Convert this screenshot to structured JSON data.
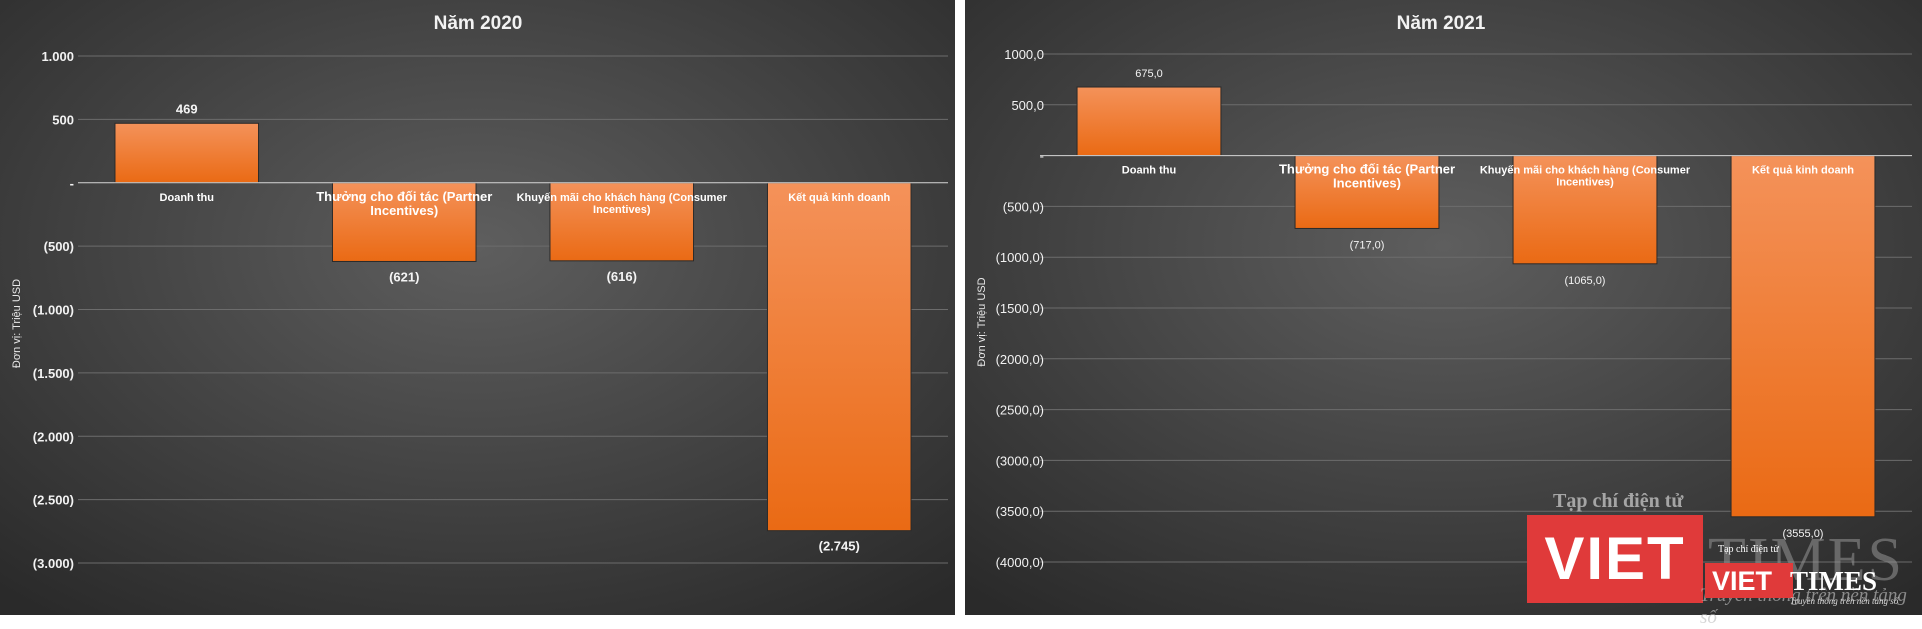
{
  "chart_data": [
    {
      "type": "bar",
      "title": "Năm 2020",
      "ylabel": "Đơn vị: Triệu USD",
      "ylim": [
        -3000,
        1000
      ],
      "yticks": [
        1000,
        500,
        0,
        -500,
        -1000,
        -1500,
        -2000,
        -2500,
        -3000
      ],
      "ytick_labels": [
        "1.000",
        "500",
        "-",
        "(500)",
        "(1.000)",
        "(1.500)",
        "(2.000)",
        "(2.500)",
        "(3.000)"
      ],
      "categories": [
        "Doanh thu",
        "Thưởng cho đối tác (Partner Incentives)",
        "Khuyến mãi cho khách hàng (Consumer Incentives)",
        "Kết quả kinh doanh"
      ],
      "values": [
        469,
        -621,
        -616,
        -2745
      ],
      "data_labels": [
        "469",
        "(621)",
        "(616)",
        "(2.745)"
      ],
      "grid": true,
      "color": "#f07a28"
    },
    {
      "type": "bar",
      "title": "Năm 2021",
      "ylabel": "Đơn vị: Triệu USD",
      "ylim": [
        -4000,
        1000
      ],
      "yticks": [
        1000,
        500,
        0,
        -500,
        -1000,
        -1500,
        -2000,
        -2500,
        -3000,
        -3500,
        -4000
      ],
      "ytick_labels": [
        "1000,0",
        "500,0",
        "-",
        "(500,0)",
        "(1000,0)",
        "(1500,0)",
        "(2000,0)",
        "(2500,0)",
        "(3000,0)",
        "(3500,0)",
        "(4000,0)"
      ],
      "categories": [
        "Doanh thu",
        "Thưởng cho đối tác (Partner Incentives)",
        "Khuyến mãi cho khách hàng (Consumer Incentives)",
        "Kết quả kinh doanh"
      ],
      "values": [
        675,
        -717,
        -1065,
        -3555
      ],
      "data_labels": [
        "675,0",
        "(717,0)",
        "(1065,0)",
        "(3555,0)"
      ],
      "grid": true,
      "color": "#f07a28"
    }
  ],
  "watermark": {
    "tagline": "Tạp chí điện tử",
    "brand_left": "VIET",
    "brand_right": "TIMES",
    "slogan": "Truyền thông trên nền tảng số",
    "brand_color": "#e03a3a"
  }
}
